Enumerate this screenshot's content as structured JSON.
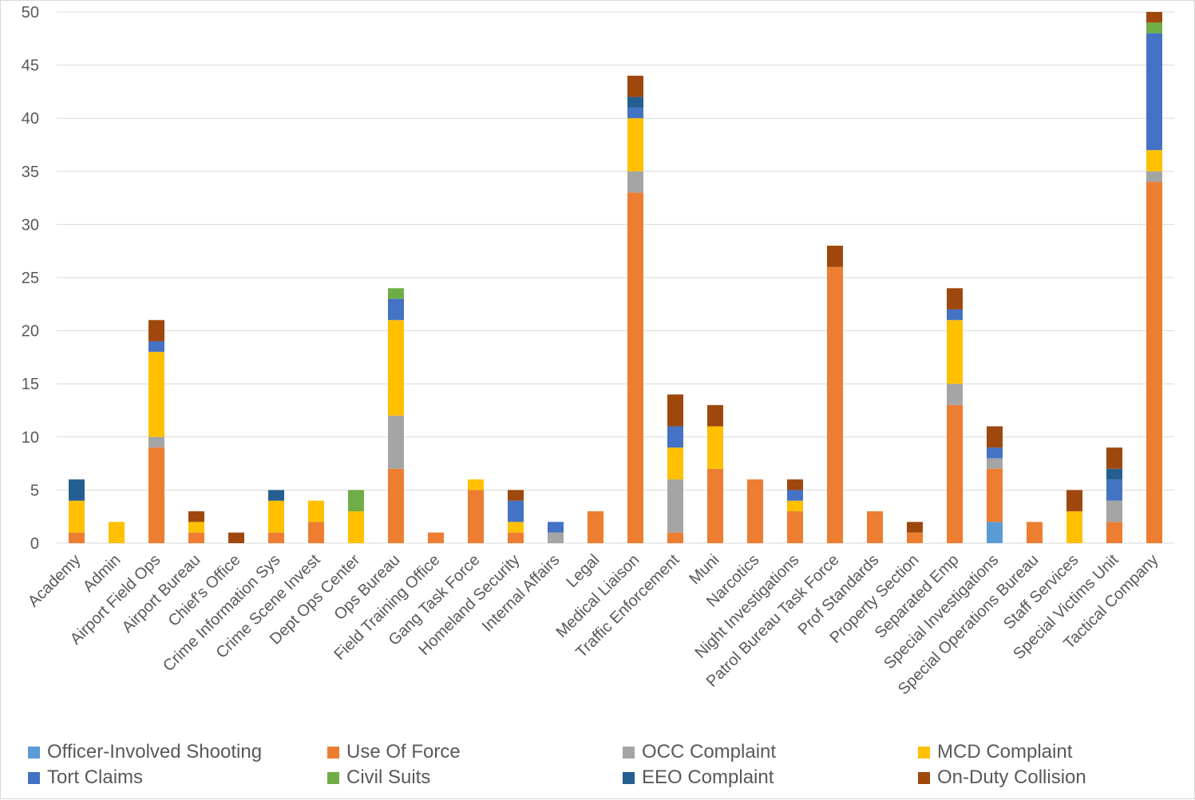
{
  "chart_data": {
    "type": "bar",
    "stacked": true,
    "categories": [
      "Academy",
      "Admin",
      "Airport Field Ops",
      "Airport Bureau",
      "Chief's Office",
      "Crime Information Sys",
      "Crime Scene Invest",
      "Dept Ops Center",
      "Ops Bureau",
      "Field Training Office",
      "Gang Task Force",
      "Homeland Security",
      "Internal Affairs",
      "Legal",
      "Medical Liaison",
      "Traffic Enforcement",
      "Muni",
      "Narcotics",
      "Night Investigations",
      "Patrol Bureau Task Force",
      "Prof Standards",
      "Property Section",
      "Separated Emp",
      "Special Investigations",
      "Special Operations Bureau",
      "Staff Services",
      "Special Victims Unit",
      "Tactical Company"
    ],
    "series": [
      {
        "name": "Officer-Involved Shooting",
        "color": "#5B9BD5",
        "values": [
          0,
          0,
          0,
          0,
          0,
          0,
          0,
          0,
          0,
          0,
          0,
          0,
          0,
          0,
          0,
          0,
          0,
          0,
          0,
          0,
          0,
          0,
          0,
          2,
          0,
          0,
          0,
          0
        ]
      },
      {
        "name": "Use Of Force",
        "color": "#ED7D31",
        "values": [
          1,
          0,
          9,
          1,
          0,
          1,
          2,
          0,
          7,
          1,
          5,
          1,
          0,
          3,
          33,
          1,
          7,
          6,
          3,
          26,
          3,
          1,
          13,
          5,
          2,
          0,
          2,
          34
        ]
      },
      {
        "name": "OCC Complaint",
        "color": "#A5A5A5",
        "values": [
          0,
          0,
          1,
          0,
          0,
          0,
          0,
          0,
          5,
          0,
          0,
          0,
          1,
          0,
          2,
          5,
          0,
          0,
          0,
          0,
          0,
          0,
          2,
          1,
          0,
          0,
          2,
          1
        ]
      },
      {
        "name": "MCD Complaint",
        "color": "#FFC000",
        "values": [
          3,
          2,
          8,
          1,
          0,
          3,
          2,
          3,
          9,
          0,
          1,
          1,
          0,
          0,
          5,
          3,
          4,
          0,
          1,
          0,
          0,
          0,
          6,
          0,
          0,
          3,
          0,
          2
        ]
      },
      {
        "name": "Tort Claims",
        "color": "#4472C4",
        "values": [
          0,
          0,
          1,
          0,
          0,
          0,
          0,
          0,
          2,
          0,
          0,
          2,
          1,
          0,
          1,
          2,
          0,
          0,
          1,
          0,
          0,
          0,
          1,
          1,
          0,
          0,
          2,
          11
        ]
      },
      {
        "name": "Civil Suits",
        "color": "#70AD47",
        "values": [
          0,
          0,
          0,
          0,
          0,
          0,
          0,
          2,
          1,
          0,
          0,
          0,
          0,
          0,
          0,
          0,
          0,
          0,
          0,
          0,
          0,
          0,
          0,
          0,
          0,
          0,
          0,
          1
        ]
      },
      {
        "name": "EEO Complaint",
        "color": "#255E91",
        "values": [
          2,
          0,
          0,
          0,
          0,
          1,
          0,
          0,
          0,
          0,
          0,
          0,
          0,
          0,
          1,
          0,
          0,
          0,
          0,
          0,
          0,
          0,
          0,
          0,
          0,
          0,
          1,
          0
        ]
      },
      {
        "name": "On-Duty Collision",
        "color": "#9E480E",
        "values": [
          0,
          0,
          2,
          1,
          1,
          0,
          0,
          0,
          0,
          0,
          0,
          1,
          0,
          0,
          2,
          3,
          2,
          0,
          1,
          2,
          0,
          1,
          2,
          2,
          0,
          2,
          2,
          1
        ]
      }
    ],
    "y_ticks": [
      "0",
      "5",
      "10",
      "15",
      "20",
      "25",
      "30",
      "35",
      "40",
      "45",
      "50"
    ],
    "ylim": [
      0,
      50
    ],
    "grid": true,
    "legend_position": "bottom"
  }
}
